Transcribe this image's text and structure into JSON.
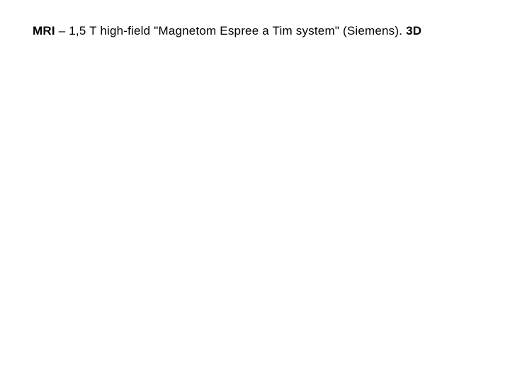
{
  "slide": {
    "text_bold_1": "MRI",
    "text_mid": " – 1,5 T high-field  \"Magnetom  Espree a Tim system\" (Siemens). ",
    "text_bold_2": "3D",
    "font_size_pt": 17,
    "text_color": "#000000",
    "background_color": "#ffffff"
  }
}
